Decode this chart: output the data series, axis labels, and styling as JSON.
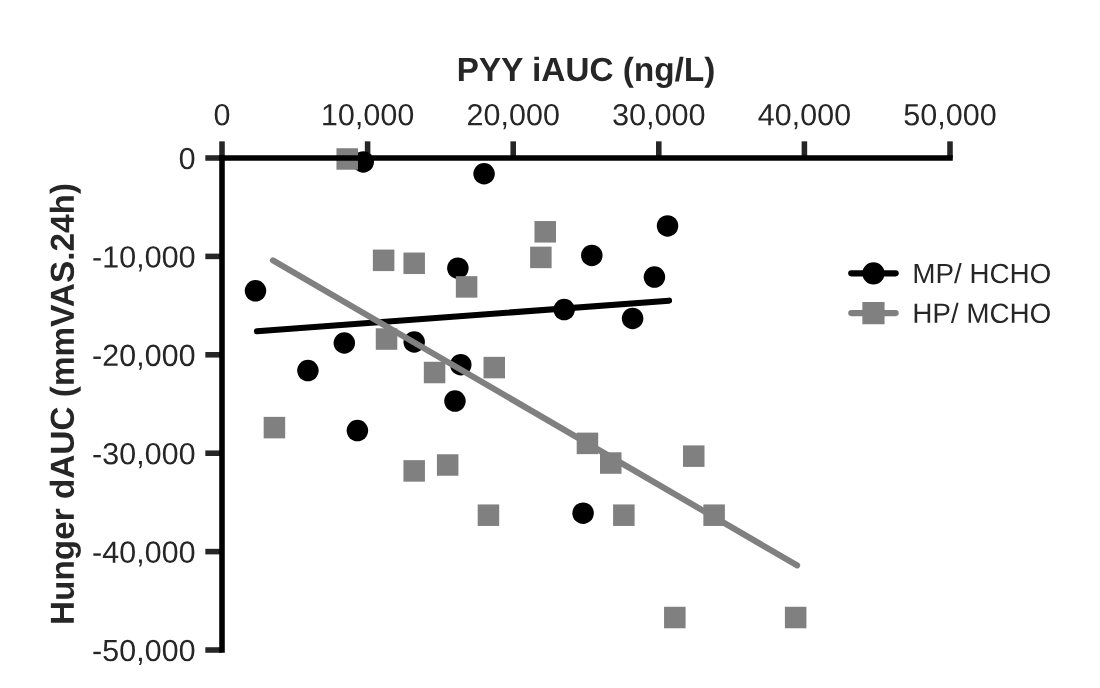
{
  "chart_data": {
    "type": "scatter",
    "xlabel": "PYY iAUC (ng/L)",
    "ylabel": "Hunger dAUC (mmVAS.24h)",
    "xlim": [
      0,
      50000
    ],
    "xticks": [
      {
        "value": 0,
        "label": "0"
      },
      {
        "value": 10000,
        "label": "10,000"
      },
      {
        "value": 20000,
        "label": "20,000"
      },
      {
        "value": 30000,
        "label": "30,000"
      },
      {
        "value": 40000,
        "label": "40,000"
      },
      {
        "value": 50000,
        "label": "50,000"
      }
    ],
    "ylim": [
      -50000,
      0
    ],
    "yticks": [
      {
        "value": -50000,
        "label": "-50,000"
      },
      {
        "value": -40000,
        "label": "-40,000"
      },
      {
        "value": -30000,
        "label": "-30,000"
      },
      {
        "value": -20000,
        "label": "-20,000"
      },
      {
        "value": -10000,
        "label": "-10,000"
      },
      {
        "value": 0,
        "label": "0"
      }
    ],
    "grid": false,
    "legend": "right",
    "series": [
      {
        "name": "MP/ HCHO",
        "marker": "circle",
        "color": "#000000",
        "x": [
          2300,
          5900,
          8400,
          9300,
          9700,
          18000,
          16200,
          13200,
          16400,
          16000,
          23500,
          25400,
          28200,
          29700,
          30600,
          24800
        ],
        "values": [
          -13500,
          -21600,
          -18800,
          -27700,
          -400,
          -1600,
          -11200,
          -18700,
          -21000,
          -24700,
          -15400,
          -9900,
          -16300,
          -12100,
          -6900,
          -36100
        ]
      },
      {
        "name": "HP/ MCHO",
        "marker": "square",
        "color": "#808080",
        "x": [
          8600,
          3600,
          11100,
          13200,
          16800,
          21900,
          22200,
          11300,
          14600,
          18700,
          13200,
          15500,
          18300,
          25100,
          26700,
          27600,
          32400,
          33800,
          31100,
          39400
        ],
        "values": [
          -100,
          -27400,
          -10400,
          -10700,
          -13100,
          -10100,
          -7500,
          -18400,
          -21800,
          -21300,
          -31800,
          -31200,
          -36300,
          -29000,
          -31000,
          -36300,
          -30300,
          -36300,
          -46700,
          -46700
        ]
      },
      {
        "type": "line",
        "color": "#000000",
        "x": [
          2400,
          30700
        ],
        "values": [
          -17600,
          -14500
        ]
      },
      {
        "type": "line",
        "color": "#808080",
        "x": [
          3500,
          39500
        ],
        "values": [
          -10400,
          -41400
        ]
      }
    ]
  }
}
